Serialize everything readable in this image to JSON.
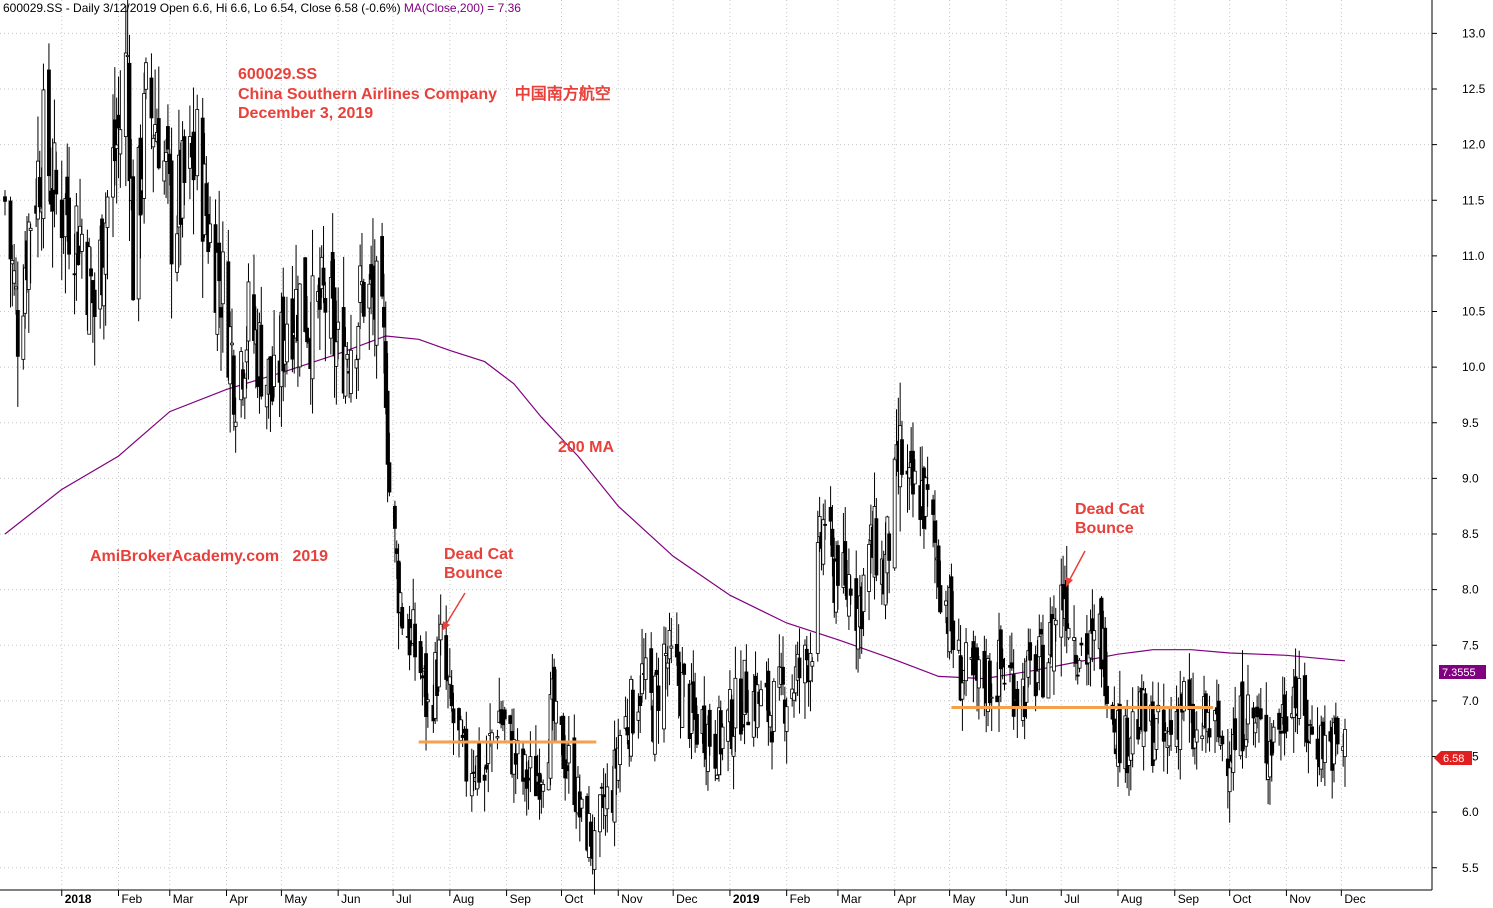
{
  "header": {
    "text": "600029.SS - Daily 3/12/2019 Open 6.6, Hi 6.6, Lo 6.54, Close 6.58 (-0.6%)",
    "ma_text": "MA(Close,200) = 7.36"
  },
  "annotations": {
    "title_lines": [
      "600029.SS",
      "China Southern Airlines Company    中国南方航空",
      "December 3, 2019"
    ],
    "ma_label": "200 MA",
    "watermark": "AmiBrokerAcademy.com   2019",
    "dcb1": [
      "Dead Cat",
      "Bounce"
    ],
    "dcb2": [
      "Dead Cat",
      "Bounce"
    ]
  },
  "colors": {
    "candle": "#000000",
    "ma": "#800080",
    "annotation": "#e8403a",
    "support": "#f5a04a",
    "grid": "#c8c8c8",
    "ma_badge": "#800080",
    "price_badge": "#e02020"
  },
  "chart_data": {
    "type": "candlestick",
    "ylim": [
      5.3,
      13.3
    ],
    "y_ticks": [
      "5.5",
      "6.0",
      "6.5",
      "7.0",
      "7.5",
      "8.0",
      "8.5",
      "9.0",
      "9.5",
      "10.0",
      "10.5",
      "11.0",
      "11.5",
      "12.0",
      "12.5",
      "13.0"
    ],
    "x_labels": [
      {
        "date": "2018-01",
        "label": "2018",
        "year": true
      },
      {
        "date": "2018-02",
        "label": "Feb"
      },
      {
        "date": "2018-03",
        "label": "Mar"
      },
      {
        "date": "2018-04",
        "label": "Apr"
      },
      {
        "date": "2018-05",
        "label": "May"
      },
      {
        "date": "2018-06",
        "label": "Jun"
      },
      {
        "date": "2018-07",
        "label": "Jul"
      },
      {
        "date": "2018-08",
        "label": "Aug"
      },
      {
        "date": "2018-09",
        "label": "Sep"
      },
      {
        "date": "2018-10",
        "label": "Oct"
      },
      {
        "date": "2018-11",
        "label": "Nov"
      },
      {
        "date": "2018-12",
        "label": "Dec"
      },
      {
        "date": "2019-01",
        "label": "2019",
        "year": true
      },
      {
        "date": "2019-02",
        "label": "Feb"
      },
      {
        "date": "2019-03",
        "label": "Mar"
      },
      {
        "date": "2019-04",
        "label": "Apr"
      },
      {
        "date": "2019-05",
        "label": "May"
      },
      {
        "date": "2019-06",
        "label": "Jun"
      },
      {
        "date": "2019-07",
        "label": "Jul"
      },
      {
        "date": "2019-08",
        "label": "Aug"
      },
      {
        "date": "2019-09",
        "label": "Sep"
      },
      {
        "date": "2019-10",
        "label": "Oct"
      },
      {
        "date": "2019-11",
        "label": "Nov"
      },
      {
        "date": "2019-12",
        "label": "Dec"
      }
    ],
    "close_path": [
      [
        "2017-12-01",
        11.5
      ],
      [
        "2017-12-08",
        10.4
      ],
      [
        "2017-12-15",
        11.4
      ],
      [
        "2017-12-22",
        12.0
      ],
      [
        "2017-12-29",
        11.5
      ],
      [
        "2018-01-05",
        11.4
      ],
      [
        "2018-01-12",
        11.2
      ],
      [
        "2018-01-19",
        10.5
      ],
      [
        "2018-01-26",
        11.5
      ],
      [
        "2018-02-02",
        12.2
      ],
      [
        "2018-02-06",
        12.8
      ],
      [
        "2018-02-09",
        10.9
      ],
      [
        "2018-02-16",
        12.3
      ],
      [
        "2018-02-23",
        12.2
      ],
      [
        "2018-03-02",
        11.3
      ],
      [
        "2018-03-09",
        11.6
      ],
      [
        "2018-03-16",
        11.9
      ],
      [
        "2018-03-23",
        11.2
      ],
      [
        "2018-03-30",
        10.7
      ],
      [
        "2018-04-06",
        9.9
      ],
      [
        "2018-04-13",
        10.4
      ],
      [
        "2018-04-20",
        10.1
      ],
      [
        "2018-04-27",
        9.7
      ],
      [
        "2018-05-04",
        10.5
      ],
      [
        "2018-05-11",
        10.6
      ],
      [
        "2018-05-18",
        10.4
      ],
      [
        "2018-05-25",
        10.6
      ],
      [
        "2018-06-01",
        10.1
      ],
      [
        "2018-06-08",
        10.3
      ],
      [
        "2018-06-15",
        10.7
      ],
      [
        "2018-06-22",
        10.5
      ],
      [
        "2018-06-27",
        10.0
      ],
      [
        "2018-06-29",
        8.9
      ],
      [
        "2018-07-03",
        8.2
      ],
      [
        "2018-07-06",
        7.8
      ],
      [
        "2018-07-10",
        7.6
      ],
      [
        "2018-07-16",
        7.3
      ],
      [
        "2018-07-20",
        6.9
      ],
      [
        "2018-07-24",
        7.2
      ],
      [
        "2018-07-27",
        7.45
      ],
      [
        "2018-08-01",
        6.95
      ],
      [
        "2018-08-06",
        6.6
      ],
      [
        "2018-08-10",
        6.4
      ],
      [
        "2018-08-14",
        6.5
      ],
      [
        "2018-08-20",
        6.3
      ],
      [
        "2018-08-24",
        6.7
      ],
      [
        "2018-08-28",
        6.9
      ],
      [
        "2018-09-03",
        6.6
      ],
      [
        "2018-09-10",
        6.3
      ],
      [
        "2018-09-17",
        6.3
      ],
      [
        "2018-09-21",
        6.5
      ],
      [
        "2018-09-26",
        6.9
      ],
      [
        "2018-09-28",
        6.7
      ],
      [
        "2018-10-08",
        6.3
      ],
      [
        "2018-10-12",
        5.9
      ],
      [
        "2018-10-17",
        5.8
      ],
      [
        "2018-10-19",
        5.6
      ],
      [
        "2018-10-23",
        6.0
      ],
      [
        "2018-10-29",
        6.2
      ],
      [
        "2018-11-02",
        6.7
      ],
      [
        "2018-11-08",
        6.9
      ],
      [
        "2018-11-14",
        7.2
      ],
      [
        "2018-11-20",
        6.9
      ],
      [
        "2018-11-26",
        7.4
      ],
      [
        "2018-11-30",
        7.3
      ],
      [
        "2018-12-06",
        7.1
      ],
      [
        "2018-12-12",
        6.8
      ],
      [
        "2018-12-18",
        6.8
      ],
      [
        "2018-12-24",
        6.6
      ],
      [
        "2018-12-28",
        6.7
      ],
      [
        "2019-01-04",
        6.9
      ],
      [
        "2019-01-10",
        7.1
      ],
      [
        "2019-01-16",
        7.0
      ],
      [
        "2019-01-22",
        6.9
      ],
      [
        "2019-01-28",
        7.0
      ],
      [
        "2019-02-01",
        7.1
      ],
      [
        "2019-02-11",
        7.3
      ],
      [
        "2019-02-15",
        7.6
      ],
      [
        "2019-02-19",
        8.3
      ],
      [
        "2019-02-22",
        8.7
      ],
      [
        "2019-02-26",
        8.1
      ],
      [
        "2019-03-01",
        8.3
      ],
      [
        "2019-03-05",
        7.9
      ],
      [
        "2019-03-08",
        8.2
      ],
      [
        "2019-03-12",
        7.8
      ],
      [
        "2019-03-18",
        8.3
      ],
      [
        "2019-03-22",
        8.4
      ],
      [
        "2019-03-26",
        8.1
      ],
      [
        "2019-04-01",
        8.8
      ],
      [
        "2019-04-04",
        9.2
      ],
      [
        "2019-04-09",
        8.8
      ],
      [
        "2019-04-15",
        8.9
      ],
      [
        "2019-04-19",
        8.7
      ],
      [
        "2019-04-24",
        8.3
      ],
      [
        "2019-04-29",
        7.9
      ],
      [
        "2019-05-06",
        7.3
      ],
      [
        "2019-05-10",
        7.2
      ],
      [
        "2019-05-15",
        7.1
      ],
      [
        "2019-05-20",
        7.2
      ],
      [
        "2019-05-24",
        7.2
      ],
      [
        "2019-05-30",
        7.3
      ],
      [
        "2019-06-04",
        7.2
      ],
      [
        "2019-06-10",
        7.1
      ],
      [
        "2019-06-14",
        7.2
      ],
      [
        "2019-06-20",
        7.3
      ],
      [
        "2019-06-25",
        7.5
      ],
      [
        "2019-06-28",
        7.8
      ],
      [
        "2019-07-03",
        8.0
      ],
      [
        "2019-07-08",
        7.6
      ],
      [
        "2019-07-12",
        7.5
      ],
      [
        "2019-07-18",
        7.4
      ],
      [
        "2019-07-22",
        7.6
      ],
      [
        "2019-07-26",
        7.3
      ],
      [
        "2019-07-31",
        6.8
      ],
      [
        "2019-08-05",
        6.6
      ],
      [
        "2019-08-09",
        6.8
      ],
      [
        "2019-08-15",
        6.8
      ],
      [
        "2019-08-21",
        6.7
      ],
      [
        "2019-08-27",
        6.6
      ],
      [
        "2019-09-02",
        6.9
      ],
      [
        "2019-09-06",
        7.0
      ],
      [
        "2019-09-12",
        6.6
      ],
      [
        "2019-09-18",
        6.8
      ],
      [
        "2019-09-24",
        6.7
      ],
      [
        "2019-09-30",
        6.6
      ],
      [
        "2019-10-04",
        6.6
      ],
      [
        "2019-10-09",
        6.9
      ],
      [
        "2019-10-15",
        6.8
      ],
      [
        "2019-10-21",
        6.6
      ],
      [
        "2019-10-25",
        6.7
      ],
      [
        "2019-10-31",
        6.9
      ],
      [
        "2019-11-04",
        7.2
      ],
      [
        "2019-11-08",
        6.9
      ],
      [
        "2019-11-14",
        6.7
      ],
      [
        "2019-11-20",
        6.65
      ],
      [
        "2019-11-26",
        6.6
      ],
      [
        "2019-12-03",
        6.58
      ]
    ],
    "ma_path": [
      [
        "2017-12-01",
        8.5
      ],
      [
        "2018-01-01",
        8.9
      ],
      [
        "2018-02-01",
        9.2
      ],
      [
        "2018-03-01",
        9.6
      ],
      [
        "2018-04-01",
        9.8
      ],
      [
        "2018-05-01",
        9.95
      ],
      [
        "2018-06-01",
        10.12
      ],
      [
        "2018-06-27",
        10.28
      ],
      [
        "2018-07-15",
        10.25
      ],
      [
        "2018-08-01",
        10.15
      ],
      [
        "2018-08-20",
        10.05
      ],
      [
        "2018-09-05",
        9.85
      ],
      [
        "2018-09-20",
        9.55
      ],
      [
        "2018-10-10",
        9.2
      ],
      [
        "2018-11-01",
        8.75
      ],
      [
        "2018-12-01",
        8.3
      ],
      [
        "2019-01-01",
        7.95
      ],
      [
        "2019-02-01",
        7.7
      ],
      [
        "2019-03-01",
        7.55
      ],
      [
        "2019-04-01",
        7.37
      ],
      [
        "2019-04-25",
        7.22
      ],
      [
        "2019-05-20",
        7.2
      ],
      [
        "2019-06-15",
        7.27
      ],
      [
        "2019-07-10",
        7.35
      ],
      [
        "2019-08-01",
        7.42
      ],
      [
        "2019-08-20",
        7.46
      ],
      [
        "2019-09-10",
        7.46
      ],
      [
        "2019-10-01",
        7.43
      ],
      [
        "2019-11-01",
        7.41
      ],
      [
        "2019-12-03",
        7.36
      ]
    ],
    "support_lines": [
      {
        "from": "2018-07-15",
        "to": "2018-10-20",
        "value": 6.63
      },
      {
        "from": "2019-05-02",
        "to": "2019-09-22",
        "value": 6.94
      }
    ],
    "last_values": {
      "ma": "7.3555",
      "price": "6.58"
    }
  }
}
